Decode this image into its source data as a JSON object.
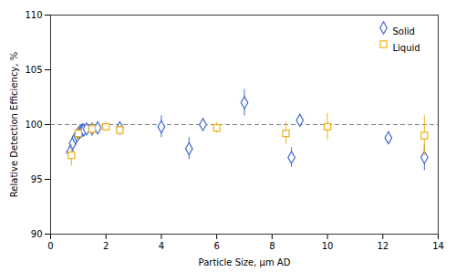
{
  "chart_data": {
    "type": "scatter",
    "xlabel": "Particle Size, μm AD",
    "ylabel": "Relative Detection Efficiency, %",
    "xlim": [
      0,
      14
    ],
    "xticks": [
      0,
      2,
      4,
      6,
      8,
      10,
      12,
      14
    ],
    "ylim": [
      90,
      110
    ],
    "yticks": [
      90,
      95,
      100,
      105,
      110
    ],
    "grid": false,
    "legend": "upper right",
    "hline": 100,
    "series": [
      {
        "name": "Solid",
        "marker": "diamond",
        "x": [
          0.7,
          0.8,
          0.9,
          0.95,
          1.0,
          1.05,
          1.1,
          1.15,
          1.2,
          1.3,
          1.5,
          1.7,
          2.5,
          4.0,
          5.0,
          5.5,
          7.0,
          8.7,
          9.0,
          12.2,
          13.5
        ],
        "values": [
          97.5,
          98.3,
          98.8,
          99.0,
          99.2,
          99.3,
          99.4,
          99.5,
          99.5,
          99.6,
          99.6,
          99.7,
          99.7,
          99.8,
          97.8,
          100.0,
          102.0,
          97.0,
          100.4,
          98.8,
          97.0
        ],
        "yerr": [
          0.6,
          0.5,
          0.5,
          0.4,
          0.4,
          0.4,
          0.4,
          0.3,
          0.4,
          0.3,
          0.4,
          0.3,
          0.4,
          1.0,
          1.0,
          0.6,
          1.2,
          0.9,
          0.5,
          0.5,
          1.2
        ]
      },
      {
        "name": "Liquid",
        "marker": "square",
        "x": [
          0.75,
          1.0,
          1.5,
          2.0,
          2.5,
          6.0,
          8.5,
          10.0,
          13.5
        ],
        "values": [
          97.2,
          99.2,
          99.6,
          99.8,
          99.5,
          99.7,
          99.2,
          99.8,
          99.0
        ],
        "yerr": [
          1.0,
          0.6,
          0.5,
          0.4,
          0.4,
          0.5,
          1.0,
          1.2,
          1.8
        ]
      }
    ]
  }
}
